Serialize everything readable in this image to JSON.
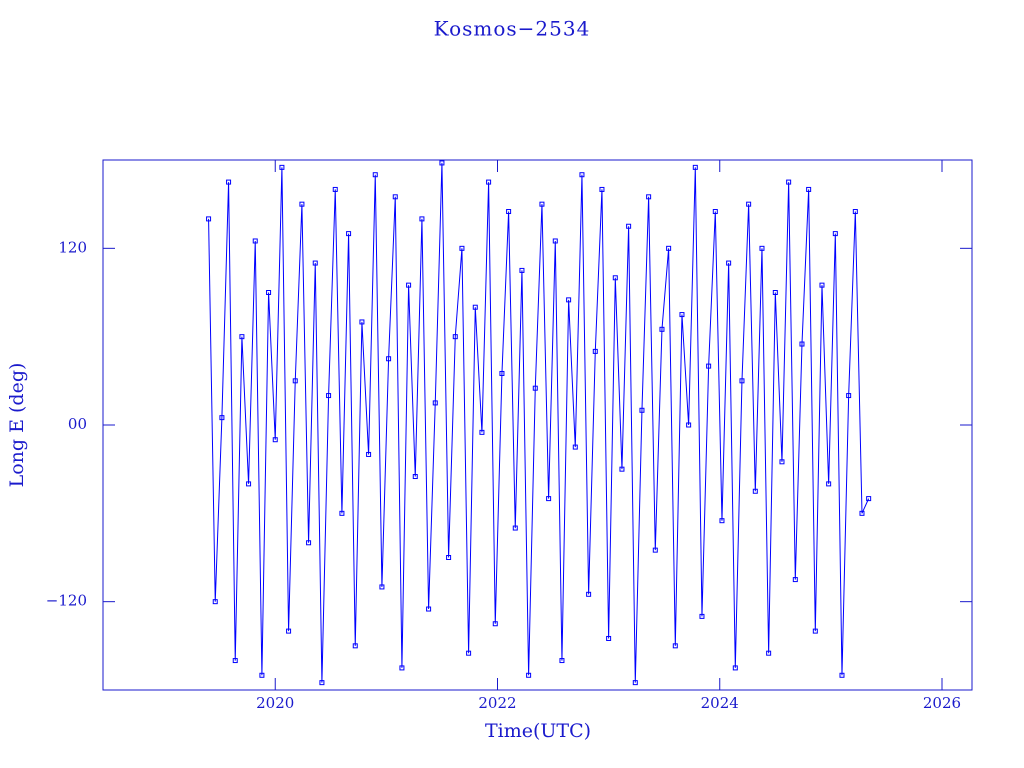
{
  "chart_data": {
    "type": "line",
    "title": "Kosmos−2534",
    "x_label": "Time(UTC)",
    "y_label": "Long E (deg)",
    "xlim": [
      2018.45,
      2026.27
    ],
    "ylim": [
      -180,
      180
    ],
    "xticks": [
      2020,
      2022,
      2024,
      2026
    ],
    "yticks": [
      {
        "value": -120,
        "label": "−120"
      },
      {
        "value": 0,
        "label": "00"
      },
      120
    ],
    "x": [
      2019.4,
      2019.46,
      2019.52,
      2019.58,
      2019.64,
      2019.7,
      2019.76,
      2019.82,
      2019.88,
      2019.94,
      2020.0,
      2020.06,
      2020.12,
      2020.18,
      2020.24,
      2020.3,
      2020.36,
      2020.42,
      2020.48,
      2020.54,
      2020.6,
      2020.66,
      2020.72,
      2020.78,
      2020.84,
      2020.9,
      2020.96,
      2021.02,
      2021.08,
      2021.14,
      2021.2,
      2021.26,
      2021.32,
      2021.38,
      2021.44,
      2021.5,
      2021.56,
      2021.62,
      2021.68,
      2021.74,
      2021.8,
      2021.86,
      2021.92,
      2021.98,
      2022.04,
      2022.1,
      2022.16,
      2022.22,
      2022.28,
      2022.34,
      2022.4,
      2022.46,
      2022.52,
      2022.58,
      2022.64,
      2022.7,
      2022.76,
      2022.82,
      2022.88,
      2022.94,
      2023.0,
      2023.06,
      2023.12,
      2023.18,
      2023.24,
      2023.3,
      2023.36,
      2023.42,
      2023.48,
      2023.54,
      2023.6,
      2023.66,
      2023.72,
      2023.78,
      2023.84,
      2023.9,
      2023.96,
      2024.02,
      2024.08,
      2024.14,
      2024.2,
      2024.26,
      2024.32,
      2024.38,
      2024.44,
      2024.5,
      2024.56,
      2024.62,
      2024.68,
      2024.74,
      2024.8,
      2024.86,
      2024.92,
      2024.98,
      2025.04,
      2025.1,
      2025.16,
      2025.22,
      2025.28,
      2025.34
    ],
    "series": [
      {
        "color": "#0000ff",
        "values": [
          140,
          -120,
          5,
          165,
          -160,
          60,
          -40,
          125,
          -170,
          90,
          -10,
          175,
          -140,
          30,
          150,
          -80,
          110,
          -175,
          20,
          160,
          -60,
          130,
          -150,
          70,
          -20,
          170,
          -110,
          45,
          155,
          -165,
          95,
          -35,
          140,
          -125,
          15,
          178,
          -90,
          60,
          120,
          -155,
          80,
          -5,
          165,
          -135,
          35,
          145,
          -70,
          105,
          -170,
          25,
          150,
          -50,
          125,
          -160,
          85,
          -15,
          170,
          -115,
          50,
          160,
          -145,
          100,
          -30,
          135,
          -175,
          10,
          155,
          -85,
          65,
          120,
          -150,
          75,
          0,
          175,
          -130,
          40,
          145,
          -65,
          110,
          -165,
          30,
          150,
          -45,
          120,
          -155,
          90,
          -25,
          165,
          -105,
          55,
          160,
          -140,
          95,
          -40,
          130,
          -170,
          20,
          145,
          -60,
          -50
        ]
      }
    ]
  }
}
